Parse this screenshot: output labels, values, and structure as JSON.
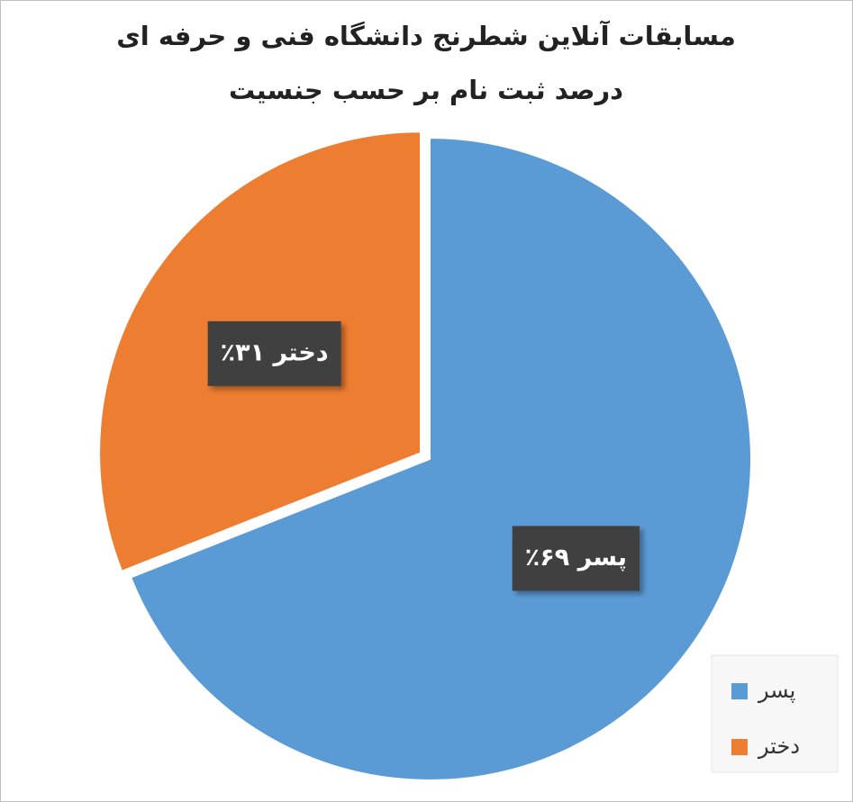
{
  "chart_data": {
    "type": "pie",
    "title": [
      "مسابقات آنلاین شطرنج دانشگاه فنی و حرفه ای",
      "درصد ثبت نام بر حسب جنسیت"
    ],
    "categories": [
      "پسر",
      "دختر"
    ],
    "values": [
      69,
      31
    ],
    "value_labels": [
      "پسر ۶۹٪",
      "دختر ۳۱٪"
    ],
    "colors": [
      "#5b9bd5",
      "#ed7d31"
    ],
    "exploded": [
      false,
      true
    ],
    "legend": "bottom-right"
  }
}
